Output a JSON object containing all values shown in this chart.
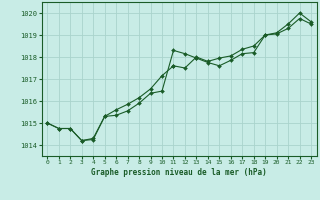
{
  "title": "Graphe pression niveau de la mer (hPa)",
  "bg_color": "#c8ece6",
  "grid_color": "#aad4cc",
  "line_color": "#1a5c28",
  "xlim": [
    -0.5,
    23.5
  ],
  "ylim": [
    1013.5,
    1020.5
  ],
  "yticks": [
    1014,
    1015,
    1016,
    1017,
    1018,
    1019,
    1020
  ],
  "xtick_labels": [
    "0",
    "1",
    "2",
    "3",
    "4",
    "5",
    "6",
    "7",
    "8",
    "9",
    "10",
    "11",
    "12",
    "13",
    "14",
    "15",
    "16",
    "17",
    "18",
    "19",
    "20",
    "21",
    "22",
    "23"
  ],
  "series1_x": [
    0,
    1,
    2,
    3,
    4,
    5,
    6,
    7,
    8,
    9,
    10,
    11,
    12,
    13
  ],
  "series1_y": [
    1015.0,
    1014.75,
    1014.75,
    1014.2,
    1014.25,
    1015.3,
    1015.35,
    1015.55,
    1015.9,
    1016.35,
    1016.45,
    1018.3,
    1018.15,
    1017.95
  ],
  "series2_x": [
    13,
    14,
    15,
    16,
    17,
    18,
    19,
    20,
    21,
    22,
    23
  ],
  "series2_y": [
    1017.95,
    1017.75,
    1017.6,
    1017.85,
    1018.15,
    1018.2,
    1019.0,
    1019.05,
    1019.3,
    1019.75,
    1019.5
  ],
  "series3_x": [
    0,
    1,
    2,
    3,
    4,
    5,
    6,
    7,
    8,
    9,
    10,
    11
  ],
  "series3_y": [
    1015.0,
    1014.75,
    1014.75,
    1014.2,
    1014.3,
    1015.3,
    1015.6,
    1015.85,
    1016.15,
    1016.55,
    1017.15,
    1017.6
  ],
  "series4_x": [
    11,
    12,
    13,
    14,
    15,
    16,
    17,
    18,
    19,
    20,
    21,
    22,
    23
  ],
  "series4_y": [
    1017.6,
    1017.5,
    1018.0,
    1017.8,
    1017.95,
    1018.05,
    1018.35,
    1018.5,
    1019.0,
    1019.1,
    1019.5,
    1020.0,
    1019.6
  ]
}
